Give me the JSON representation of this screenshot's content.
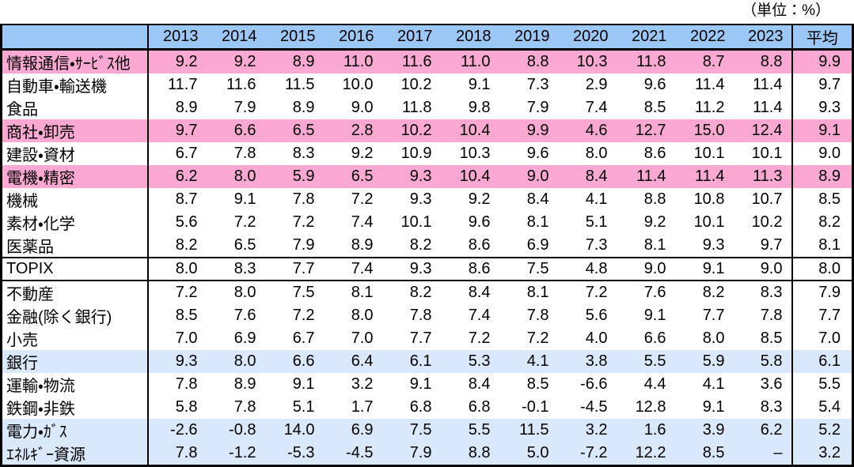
{
  "unit_label": "（単位：%）",
  "colors": {
    "header_bg": "#9CC8F7",
    "pink_row": "#FBA9D3",
    "blue_row": "#D9E8FB",
    "border": "#000000",
    "text": "#000000"
  },
  "chart_data": {
    "type": "table",
    "title": "",
    "unit": "%",
    "columns": [
      "",
      "2013",
      "2014",
      "2015",
      "2016",
      "2017",
      "2018",
      "2019",
      "2020",
      "2021",
      "2022",
      "2023",
      "平均"
    ],
    "rows": [
      {
        "label": "情報通信・ｻｰﾋﾞｽ他",
        "highlight": "pink",
        "boxed": false,
        "values": [
          "9.2",
          "9.2",
          "8.9",
          "11.0",
          "11.6",
          "11.0",
          "8.8",
          "10.3",
          "11.8",
          "8.7",
          "8.8"
        ],
        "average": "9.9"
      },
      {
        "label": "自動車・輸送機",
        "highlight": null,
        "boxed": false,
        "values": [
          "11.7",
          "11.6",
          "11.5",
          "10.0",
          "10.2",
          "9.1",
          "7.3",
          "2.9",
          "9.6",
          "11.4",
          "11.4"
        ],
        "average": "9.7"
      },
      {
        "label": "食品",
        "highlight": null,
        "boxed": false,
        "values": [
          "8.9",
          "7.9",
          "8.9",
          "9.0",
          "11.8",
          "9.8",
          "7.9",
          "7.4",
          "8.5",
          "11.2",
          "11.4"
        ],
        "average": "9.3"
      },
      {
        "label": "商社・卸売",
        "highlight": "pink",
        "boxed": false,
        "values": [
          "9.7",
          "6.6",
          "6.5",
          "2.8",
          "10.2",
          "10.4",
          "9.9",
          "4.6",
          "12.7",
          "15.0",
          "12.4"
        ],
        "average": "9.1"
      },
      {
        "label": "建設・資材",
        "highlight": null,
        "boxed": false,
        "values": [
          "6.7",
          "7.8",
          "8.3",
          "9.2",
          "10.9",
          "10.3",
          "9.6",
          "8.0",
          "8.6",
          "10.1",
          "10.1"
        ],
        "average": "9.0"
      },
      {
        "label": "電機・精密",
        "highlight": "pink",
        "boxed": false,
        "values": [
          "6.2",
          "8.0",
          "5.9",
          "6.5",
          "9.3",
          "10.4",
          "9.0",
          "8.4",
          "11.4",
          "11.4",
          "11.3"
        ],
        "average": "8.9"
      },
      {
        "label": "機械",
        "highlight": null,
        "boxed": false,
        "values": [
          "8.7",
          "9.1",
          "7.8",
          "7.2",
          "9.3",
          "9.2",
          "8.4",
          "4.1",
          "8.8",
          "10.8",
          "10.7"
        ],
        "average": "8.5"
      },
      {
        "label": "素材・化学",
        "highlight": null,
        "boxed": false,
        "values": [
          "5.6",
          "7.2",
          "7.2",
          "7.4",
          "10.1",
          "9.6",
          "8.1",
          "5.1",
          "9.2",
          "10.1",
          "10.2"
        ],
        "average": "8.2"
      },
      {
        "label": "医薬品",
        "highlight": null,
        "boxed": false,
        "values": [
          "8.2",
          "6.5",
          "7.9",
          "8.9",
          "8.2",
          "8.6",
          "6.9",
          "7.3",
          "8.1",
          "9.3",
          "9.7"
        ],
        "average": "8.1"
      },
      {
        "label": "TOPIX",
        "highlight": null,
        "boxed": true,
        "values": [
          "8.0",
          "8.3",
          "7.7",
          "7.4",
          "9.3",
          "8.6",
          "7.5",
          "4.8",
          "9.0",
          "9.1",
          "9.0"
        ],
        "average": "8.0"
      },
      {
        "label": "不動産",
        "highlight": null,
        "boxed": false,
        "values": [
          "7.2",
          "8.0",
          "7.5",
          "8.1",
          "8.2",
          "8.4",
          "8.1",
          "7.2",
          "7.6",
          "8.2",
          "8.3"
        ],
        "average": "7.9"
      },
      {
        "label": "金融(除く銀行)",
        "highlight": null,
        "boxed": false,
        "values": [
          "8.5",
          "7.6",
          "7.2",
          "8.0",
          "7.8",
          "7.4",
          "7.8",
          "5.6",
          "9.1",
          "7.7",
          "7.8"
        ],
        "average": "7.7"
      },
      {
        "label": "小売",
        "highlight": null,
        "boxed": false,
        "values": [
          "7.0",
          "6.9",
          "6.7",
          "7.0",
          "7.7",
          "7.2",
          "7.2",
          "4.0",
          "6.6",
          "8.0",
          "8.5"
        ],
        "average": "7.0"
      },
      {
        "label": "銀行",
        "highlight": "blue",
        "boxed": false,
        "values": [
          "9.3",
          "8.0",
          "6.6",
          "6.4",
          "6.1",
          "5.3",
          "4.1",
          "3.8",
          "5.5",
          "5.9",
          "5.8"
        ],
        "average": "6.1"
      },
      {
        "label": "運輸・物流",
        "highlight": null,
        "boxed": false,
        "values": [
          "7.8",
          "8.9",
          "9.1",
          "3.2",
          "9.1",
          "8.4",
          "8.5",
          "-6.6",
          "4.4",
          "4.1",
          "3.6"
        ],
        "average": "5.5"
      },
      {
        "label": "鉄鋼・非鉄",
        "highlight": null,
        "boxed": false,
        "values": [
          "5.8",
          "7.8",
          "5.1",
          "1.7",
          "6.8",
          "6.8",
          "-0.1",
          "-4.5",
          "12.8",
          "9.1",
          "8.3"
        ],
        "average": "5.4"
      },
      {
        "label": "電力・ｶﾞｽ",
        "highlight": "blue",
        "boxed": false,
        "values": [
          "-2.6",
          "-0.8",
          "14.0",
          "6.9",
          "7.5",
          "5.5",
          "11.5",
          "3.2",
          "1.6",
          "3.9",
          "6.2"
        ],
        "average": "5.2"
      },
      {
        "label": "ｴﾈﾙｷﾞｰ資源",
        "highlight": "blue",
        "boxed": false,
        "values": [
          "7.8",
          "-1.2",
          "-5.3",
          "-4.5",
          "7.9",
          "8.8",
          "5.0",
          "-7.2",
          "12.2",
          "8.5",
          "–"
        ],
        "average": "3.2"
      }
    ]
  }
}
